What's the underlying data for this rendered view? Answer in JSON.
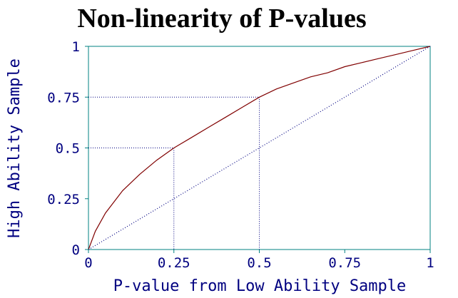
{
  "chart_data": {
    "type": "line",
    "title": "Non-linearity of P-values",
    "xlabel": "P-value from Low Ability Sample",
    "ylabel": "High Ability Sample",
    "xlim": [
      0,
      1
    ],
    "ylim": [
      0,
      1
    ],
    "x_ticks": [
      "0",
      "0.25",
      "0.5",
      "0.75",
      "1"
    ],
    "y_ticks": [
      "0",
      "0.25",
      "0.5",
      "0.75",
      "1"
    ],
    "grid": false,
    "series": [
      {
        "style": "solid",
        "color": "#800000",
        "x": [
          0,
          0.02,
          0.05,
          0.1,
          0.15,
          0.2,
          0.25,
          0.3,
          0.35,
          0.4,
          0.45,
          0.5,
          0.55,
          0.6,
          0.65,
          0.7,
          0.75,
          0.8,
          0.85,
          0.9,
          0.95,
          1
        ],
        "y": [
          0,
          0.09,
          0.18,
          0.29,
          0.37,
          0.44,
          0.5,
          0.55,
          0.6,
          0.65,
          0.7,
          0.75,
          0.79,
          0.82,
          0.85,
          0.87,
          0.9,
          0.92,
          0.94,
          0.96,
          0.98,
          1
        ]
      },
      {
        "style": "dotted",
        "color": "#000080",
        "x": [
          0,
          1
        ],
        "y": [
          0,
          1
        ]
      }
    ],
    "reference_lines": [
      {
        "x": 0.25,
        "y": 0.5
      },
      {
        "x": 0.5,
        "y": 0.75
      }
    ],
    "colors": {
      "axis": "#008080",
      "text": "#000080",
      "title": "#000000"
    }
  }
}
